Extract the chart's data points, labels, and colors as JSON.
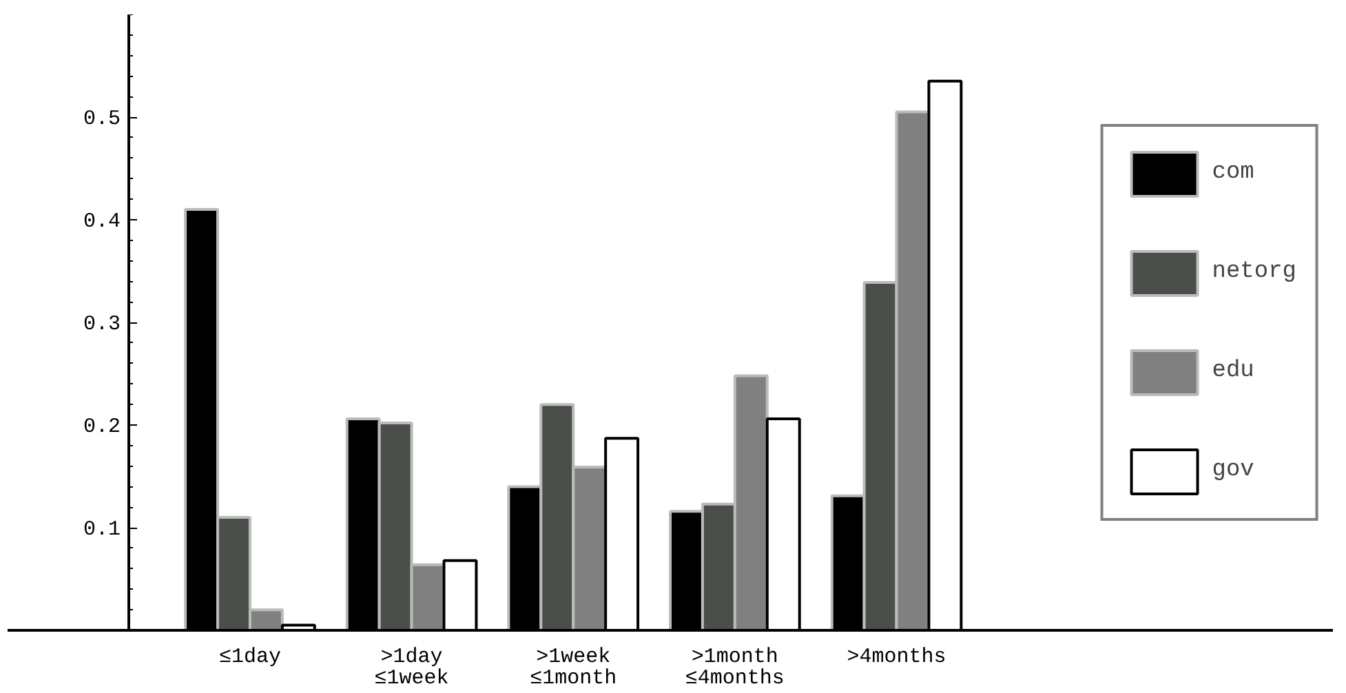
{
  "chart_data": {
    "type": "bar",
    "categories": [
      "≤1day",
      ">1day\n≤1week",
      ">1week\n≤1month",
      ">1month\n≤4months",
      ">4months"
    ],
    "series": [
      {
        "name": "com",
        "color": "#000000",
        "values": [
          0.41,
          0.206,
          0.14,
          0.116,
          0.131
        ]
      },
      {
        "name": "netorg",
        "color": "#4a4f4a",
        "values": [
          0.11,
          0.202,
          0.22,
          0.123,
          0.339
        ]
      },
      {
        "name": "edu",
        "color": "#808080",
        "values": [
          0.02,
          0.064,
          0.159,
          0.248,
          0.505
        ]
      },
      {
        "name": "gov",
        "color": "#ffffff",
        "values": [
          0.005,
          0.068,
          0.187,
          0.206,
          0.535
        ]
      }
    ],
    "ylim": [
      0,
      0.6
    ],
    "yticks": [
      0.1,
      0.2,
      0.3,
      0.4,
      0.5
    ],
    "grid": false,
    "legend": "right"
  }
}
